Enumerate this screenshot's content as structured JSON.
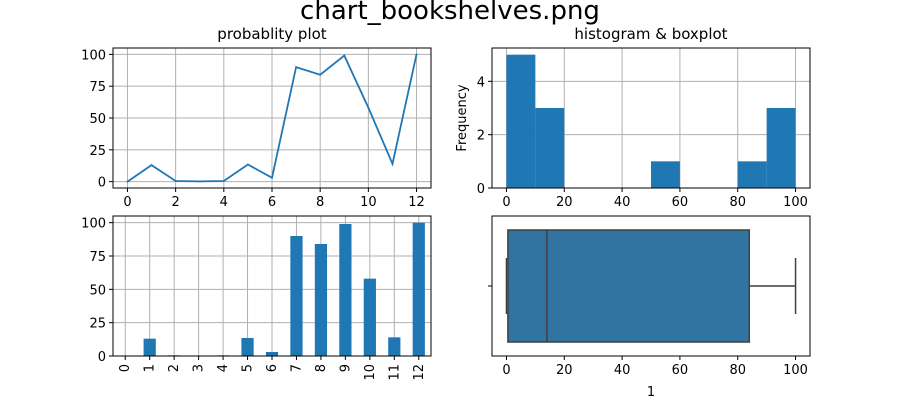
{
  "figure": {
    "title": "chart_bookshelves.png"
  },
  "colors": {
    "series": "#1f77b4",
    "box_fill": "#3274a1",
    "box_edge": "#3f3f3f",
    "grid": "#b0b0b0"
  },
  "chart_data": [
    {
      "type": "line",
      "title": "probablity plot",
      "xlabel": "",
      "ylabel": "",
      "x": [
        0,
        1,
        2,
        3,
        4,
        5,
        6,
        7,
        8,
        9,
        10,
        11,
        12
      ],
      "values": [
        0,
        13,
        0.5,
        0.2,
        0.5,
        13.5,
        3,
        90,
        84,
        99,
        58,
        14,
        100
      ],
      "xlim": [
        -0.6,
        12.6
      ],
      "ylim": [
        -5,
        105
      ],
      "xticks": [
        0,
        2,
        4,
        6,
        8,
        10,
        12
      ],
      "yticks": [
        0,
        25,
        50,
        75,
        100
      ],
      "grid": true
    },
    {
      "type": "bar",
      "title": "histogram & boxplot",
      "xlabel": "",
      "ylabel": "Frequency",
      "bin_edges": [
        0,
        10,
        20,
        30,
        40,
        50,
        60,
        70,
        80,
        90,
        100
      ],
      "values": [
        5,
        3,
        0,
        0,
        0,
        1,
        0,
        0,
        1,
        3
      ],
      "xlim": [
        -5,
        105
      ],
      "ylim": [
        0,
        5.25
      ],
      "xticks": [
        0,
        20,
        40,
        60,
        80,
        100
      ],
      "yticks": [
        0,
        2,
        4
      ],
      "grid": true
    },
    {
      "type": "bar",
      "title": "",
      "xlabel": "",
      "ylabel": "",
      "categories": [
        "0",
        "1",
        "2",
        "3",
        "4",
        "5",
        "6",
        "7",
        "8",
        "9",
        "10",
        "11",
        "12"
      ],
      "values": [
        0,
        13,
        0.5,
        0.2,
        0.5,
        13.5,
        3,
        90,
        84,
        99,
        58,
        14,
        100
      ],
      "ylim": [
        0,
        105
      ],
      "yticks": [
        0,
        25,
        50,
        75,
        100
      ],
      "grid": true
    },
    {
      "type": "box",
      "title": "",
      "xlabel": "1",
      "ylabel": "",
      "whisker_low": 0,
      "q1": 0.5,
      "median": 14,
      "q3": 84,
      "whisker_high": 100,
      "xlim": [
        -5,
        105
      ],
      "xticks": [
        0,
        20,
        40,
        60,
        80,
        100
      ],
      "grid": false
    }
  ]
}
